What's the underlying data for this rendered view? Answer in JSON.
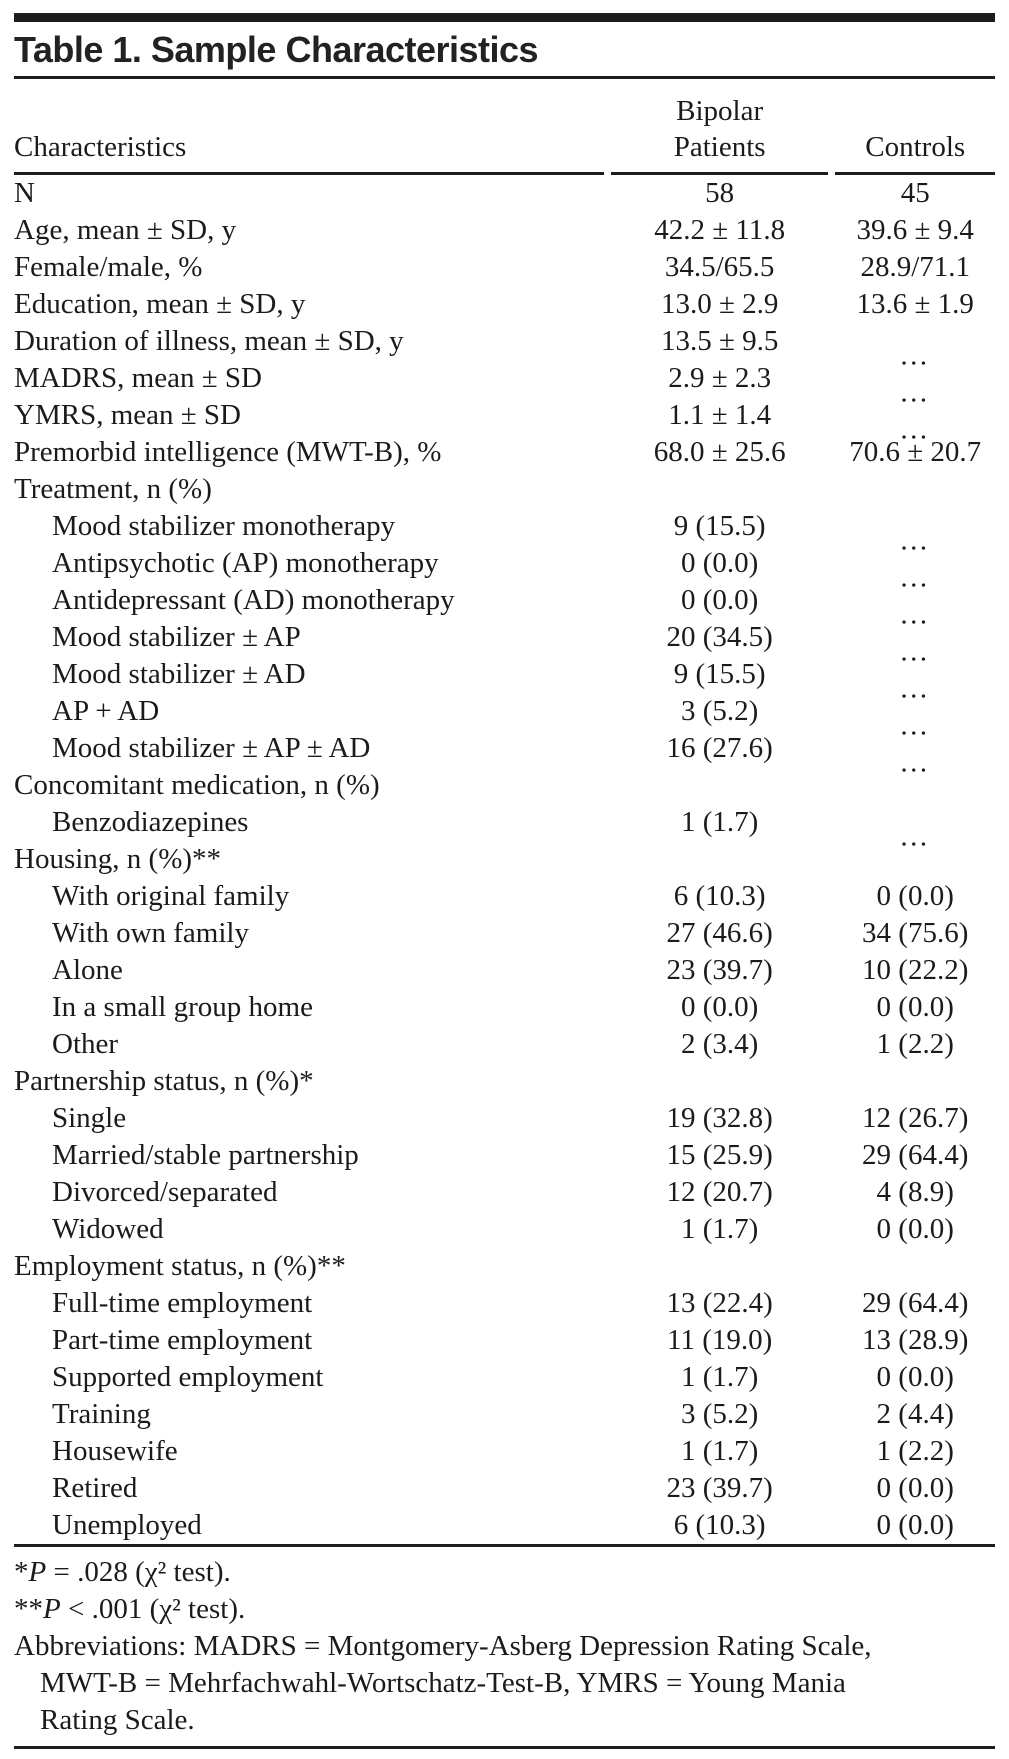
{
  "table": {
    "title": "Table 1. Sample Characteristics",
    "columns": [
      {
        "id": "characteristics",
        "label": "Characteristics"
      },
      {
        "id": "bipolar_patients",
        "label_line1": "Bipolar",
        "label_line2": "Patients"
      },
      {
        "id": "controls",
        "label": "Controls"
      }
    ],
    "rows": [
      {
        "label": "N",
        "indent": false,
        "bipolar_patients": "58",
        "controls": "45"
      },
      {
        "label": "Age, mean ± SD, y",
        "indent": false,
        "bipolar_patients": "42.2 ± 11.8",
        "controls": "39.6 ± 9.4"
      },
      {
        "label": "Female/male, %",
        "indent": false,
        "bipolar_patients": "34.5/65.5",
        "controls": "28.9/71.1"
      },
      {
        "label": "Education, mean ± SD, y",
        "indent": false,
        "bipolar_patients": "13.0 ± 2.9",
        "controls": "13.6 ± 1.9"
      },
      {
        "label": "Duration of illness, mean ± SD, y",
        "indent": false,
        "bipolar_patients": "13.5 ± 9.5",
        "controls": "…"
      },
      {
        "label": "MADRS, mean ± SD",
        "indent": false,
        "bipolar_patients": "2.9 ± 2.3",
        "controls": "…"
      },
      {
        "label": "YMRS, mean ± SD",
        "indent": false,
        "bipolar_patients": "1.1 ± 1.4",
        "controls": "…"
      },
      {
        "label": "Premorbid intelligence (MWT-B), %",
        "indent": false,
        "bipolar_patients": "68.0 ± 25.6",
        "controls": "70.6 ± 20.7"
      },
      {
        "label": "Treatment, n (%)",
        "indent": false,
        "bipolar_patients": "",
        "controls": ""
      },
      {
        "label": "Mood stabilizer monotherapy",
        "indent": true,
        "bipolar_patients": "9 (15.5)",
        "controls": "…"
      },
      {
        "label": "Antipsychotic (AP) monotherapy",
        "indent": true,
        "bipolar_patients": "0 (0.0)",
        "controls": "…"
      },
      {
        "label": "Antidepressant (AD) monotherapy",
        "indent": true,
        "bipolar_patients": "0 (0.0)",
        "controls": "…"
      },
      {
        "label": "Mood stabilizer ± AP",
        "indent": true,
        "bipolar_patients": "20 (34.5)",
        "controls": "…"
      },
      {
        "label": "Mood stabilizer ± AD",
        "indent": true,
        "bipolar_patients": "9 (15.5)",
        "controls": "…"
      },
      {
        "label": "AP + AD",
        "indent": true,
        "bipolar_patients": "3 (5.2)",
        "controls": "…"
      },
      {
        "label": "Mood stabilizer ± AP ± AD",
        "indent": true,
        "bipolar_patients": "16 (27.6)",
        "controls": "…"
      },
      {
        "label": "Concomitant medication, n (%)",
        "indent": false,
        "bipolar_patients": "",
        "controls": ""
      },
      {
        "label": "Benzodiazepines",
        "indent": true,
        "bipolar_patients": "1 (1.7)",
        "controls": "…"
      },
      {
        "label": "Housing, n (%)**",
        "indent": false,
        "bipolar_patients": "",
        "controls": ""
      },
      {
        "label": "With original family",
        "indent": true,
        "bipolar_patients": "6 (10.3)",
        "controls": "0 (0.0)"
      },
      {
        "label": "With own family",
        "indent": true,
        "bipolar_patients": "27 (46.6)",
        "controls": "34 (75.6)"
      },
      {
        "label": "Alone",
        "indent": true,
        "bipolar_patients": "23 (39.7)",
        "controls": "10 (22.2)"
      },
      {
        "label": "In a small group home",
        "indent": true,
        "bipolar_patients": "0 (0.0)",
        "controls": "0 (0.0)"
      },
      {
        "label": "Other",
        "indent": true,
        "bipolar_patients": "2 (3.4)",
        "controls": "1 (2.2)"
      },
      {
        "label": "Partnership status, n (%)*",
        "indent": false,
        "bipolar_patients": "",
        "controls": ""
      },
      {
        "label": "Single",
        "indent": true,
        "bipolar_patients": "19 (32.8)",
        "controls": "12 (26.7)"
      },
      {
        "label": "Married/stable partnership",
        "indent": true,
        "bipolar_patients": "15 (25.9)",
        "controls": "29 (64.4)"
      },
      {
        "label": "Divorced/separated",
        "indent": true,
        "bipolar_patients": "12 (20.7)",
        "controls": "4 (8.9)"
      },
      {
        "label": "Widowed",
        "indent": true,
        "bipolar_patients": "1 (1.7)",
        "controls": "0 (0.0)"
      },
      {
        "label": "Employment status, n (%)**",
        "indent": false,
        "bipolar_patients": "",
        "controls": ""
      },
      {
        "label": "Full-time employment",
        "indent": true,
        "bipolar_patients": "13 (22.4)",
        "controls": "29 (64.4)"
      },
      {
        "label": "Part-time employment",
        "indent": true,
        "bipolar_patients": "11 (19.0)",
        "controls": "13 (28.9)"
      },
      {
        "label": "Supported employment",
        "indent": true,
        "bipolar_patients": "1 (1.7)",
        "controls": "0 (0.0)"
      },
      {
        "label": "Training",
        "indent": true,
        "bipolar_patients": "3 (5.2)",
        "controls": "2 (4.4)"
      },
      {
        "label": "Housewife",
        "indent": true,
        "bipolar_patients": "1 (1.7)",
        "controls": "1 (2.2)"
      },
      {
        "label": "Retired",
        "indent": true,
        "bipolar_patients": "23 (39.7)",
        "controls": "0 (0.0)"
      },
      {
        "label": "Unemployed",
        "indent": true,
        "bipolar_patients": "6 (10.3)",
        "controls": "0 (0.0)"
      }
    ]
  },
  "footnotes": {
    "note1": {
      "marker": "*",
      "p": "P",
      "text": " = .028 (χ² test)."
    },
    "note2": {
      "marker": "**",
      "p": "P",
      "text": " < .001 (χ² test)."
    },
    "abbreviations_lines": [
      "Abbreviations: MADRS = Montgomery-Asberg Depression Rating Scale,",
      "MWT-B = Mehrfachwahl-Wortschatz-Test-B, YMRS = Young Mania",
      "Rating Scale."
    ]
  },
  "colors": {
    "rule": "#1d1d1d",
    "text": "#1b1b1b",
    "background": "#ffffff"
  }
}
